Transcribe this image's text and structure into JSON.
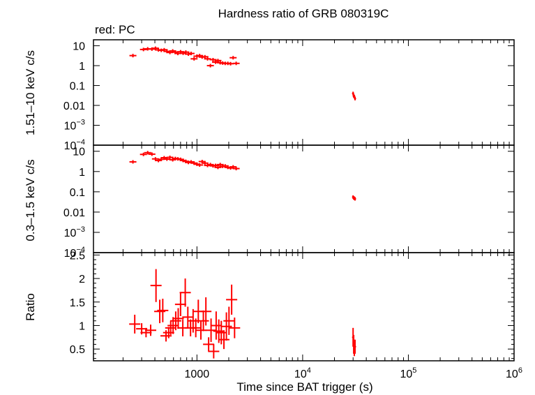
{
  "title": "Hardness ratio of GRB 080319C",
  "legend_note": "red: PC",
  "xlabel": "Time since BAT trigger (s)",
  "colors": {
    "data": "#ff0000",
    "axes": "#000000"
  },
  "chart_data": [
    {
      "type": "scatter",
      "panel": "top",
      "ylabel": "1.51–10 keV c/s",
      "xscale": "log",
      "yscale": "log",
      "xlim": [
        105,
        1000000
      ],
      "ylim": [
        0.0001,
        20
      ],
      "x_ticks": [
        {
          "value": 1000,
          "label": "1000"
        },
        {
          "value": 10000,
          "label": "10",
          "sup": "4"
        },
        {
          "value": 100000,
          "label": "10",
          "sup": "5"
        },
        {
          "value": 1000000,
          "label": "10",
          "sup": "6"
        }
      ],
      "y_ticks": [
        {
          "value": 10,
          "label": "10"
        },
        {
          "value": 1,
          "label": "1"
        },
        {
          "value": 0.1,
          "label": "0.1"
        },
        {
          "value": 0.01,
          "label": "0.01"
        },
        {
          "value": 0.001,
          "label": "10",
          "sup": "−3"
        },
        {
          "value": 0.0001,
          "label": "10",
          "sup": "−4"
        }
      ],
      "series": [
        {
          "points": [
            [
              248,
              3.2
            ],
            [
              312,
              6.5
            ],
            [
              342,
              7.0
            ],
            [
              375,
              6.8
            ],
            [
              405,
              7.5
            ],
            [
              432,
              6.2
            ],
            [
              460,
              5.9
            ],
            [
              490,
              6.3
            ],
            [
              520,
              5.2
            ],
            [
              555,
              4.6
            ],
            [
              590,
              5.5
            ],
            [
              625,
              4.8
            ],
            [
              660,
              4.1
            ],
            [
              700,
              5.0
            ],
            [
              740,
              4.2
            ],
            [
              785,
              4.8
            ],
            [
              830,
              3.8
            ],
            [
              880,
              4.1
            ],
            [
              940,
              2.2
            ],
            [
              1000,
              3.0
            ],
            [
              1060,
              3.2
            ],
            [
              1120,
              2.7
            ],
            [
              1190,
              2.8
            ],
            [
              1260,
              2.2
            ],
            [
              1340,
              1.0
            ],
            [
              1420,
              2.0
            ],
            [
              1500,
              1.5
            ],
            [
              1580,
              1.8
            ],
            [
              1660,
              1.4
            ],
            [
              1750,
              1.35
            ],
            [
              1850,
              1.3
            ],
            [
              1960,
              1.3
            ],
            [
              2080,
              1.25
            ],
            [
              2200,
              2.5
            ],
            [
              2350,
              1.3
            ],
            [
              30000,
              0.04
            ],
            [
              30400,
              0.03
            ],
            [
              30800,
              0.028
            ],
            [
              31300,
              0.022
            ]
          ]
        }
      ]
    },
    {
      "type": "scatter",
      "panel": "middle",
      "ylabel": "0.3–1.5 keV c/s",
      "xscale": "log",
      "yscale": "log",
      "xlim": [
        105,
        1000000
      ],
      "ylim": [
        0.0001,
        20
      ],
      "y_ticks": [
        {
          "value": 10,
          "label": "10"
        },
        {
          "value": 1,
          "label": "1"
        },
        {
          "value": 0.1,
          "label": "0.1"
        },
        {
          "value": 0.01,
          "label": "0.01"
        },
        {
          "value": 0.001,
          "label": "10",
          "sup": "−3"
        },
        {
          "value": 0.0001,
          "label": "10",
          "sup": "−4"
        }
      ],
      "series": [
        {
          "points": [
            [
              248,
              3.0
            ],
            [
              312,
              7.0
            ],
            [
              342,
              8.5
            ],
            [
              375,
              7.2
            ],
            [
              405,
              4.2
            ],
            [
              432,
              3.5
            ],
            [
              460,
              4.0
            ],
            [
              490,
              4.8
            ],
            [
              520,
              4.1
            ],
            [
              555,
              5.0
            ],
            [
              590,
              3.8
            ],
            [
              625,
              4.4
            ],
            [
              660,
              4.2
            ],
            [
              700,
              4.0
            ],
            [
              740,
              3.5
            ],
            [
              785,
              3.2
            ],
            [
              830,
              2.8
            ],
            [
              880,
              3.0
            ],
            [
              940,
              2.6
            ],
            [
              1000,
              2.3
            ],
            [
              1060,
              2.1
            ],
            [
              1120,
              3.1
            ],
            [
              1190,
              2.6
            ],
            [
              1260,
              2.0
            ],
            [
              1340,
              2.2
            ],
            [
              1420,
              1.9
            ],
            [
              1500,
              2.0
            ],
            [
              1580,
              1.6
            ],
            [
              1660,
              2.2
            ],
            [
              1750,
              1.8
            ],
            [
              1850,
              1.9
            ],
            [
              1960,
              1.6
            ],
            [
              2080,
              1.5
            ],
            [
              2200,
              1.7
            ],
            [
              2350,
              1.4
            ],
            [
              30000,
              0.055
            ],
            [
              30400,
              0.05
            ],
            [
              30800,
              0.048
            ],
            [
              31300,
              0.045
            ]
          ]
        }
      ]
    },
    {
      "type": "scatter",
      "panel": "bottom",
      "ylabel": "Ratio",
      "xscale": "log",
      "yscale": "linear",
      "xlim": [
        105,
        1000000
      ],
      "ylim": [
        0.25,
        2.55
      ],
      "y_ticks": [
        {
          "value": 0.5,
          "label": "0.5"
        },
        {
          "value": 1,
          "label": "1"
        },
        {
          "value": 1.5,
          "label": "1.5"
        },
        {
          "value": 2,
          "label": "2"
        },
        {
          "value": 2.5,
          "label": "2.5"
        }
      ],
      "series": [
        {
          "points": [
            [
              258,
              1.03
            ],
            [
              300,
              0.93
            ],
            [
              330,
              0.85
            ],
            [
              365,
              0.9
            ],
            [
              410,
              1.85
            ],
            [
              445,
              1.3
            ],
            [
              475,
              1.32
            ],
            [
              510,
              0.78
            ],
            [
              540,
              0.85
            ],
            [
              565,
              0.95
            ],
            [
              595,
              1.0
            ],
            [
              630,
              1.1
            ],
            [
              665,
              1.15
            ],
            [
              700,
              1.45
            ],
            [
              735,
              0.95
            ],
            [
              775,
              1.7
            ],
            [
              820,
              1.18
            ],
            [
              870,
              0.95
            ],
            [
              920,
              1.1
            ],
            [
              975,
              0.95
            ],
            [
              1030,
              1.3
            ],
            [
              1090,
              0.9
            ],
            [
              1150,
              1.1
            ],
            [
              1215,
              1.3
            ],
            [
              1290,
              0.6
            ],
            [
              1360,
              0.9
            ],
            [
              1440,
              0.45
            ],
            [
              1520,
              1.0
            ],
            [
              1610,
              0.88
            ],
            [
              1700,
              0.85
            ],
            [
              1800,
              0.7
            ],
            [
              1900,
              0.98
            ],
            [
              2010,
              1.1
            ],
            [
              2130,
              1.55
            ],
            [
              2270,
              0.95
            ],
            [
              30000,
              0.75
            ],
            [
              30400,
              0.6
            ],
            [
              30800,
              0.5
            ],
            [
              31300,
              0.55
            ]
          ],
          "yerr": [
            0.2,
            0.12,
            0.1,
            0.12,
            0.35,
            0.25,
            0.25,
            0.12,
            0.12,
            0.15,
            0.18,
            0.2,
            0.22,
            0.25,
            0.18,
            0.3,
            0.22,
            0.18,
            0.25,
            0.2,
            0.25,
            0.2,
            0.22,
            0.3,
            0.15,
            0.25,
            0.15,
            0.3,
            0.25,
            0.25,
            0.2,
            0.3,
            0.3,
            0.32,
            0.22,
            0.2,
            0.2,
            0.15,
            0.15
          ]
        }
      ]
    }
  ]
}
